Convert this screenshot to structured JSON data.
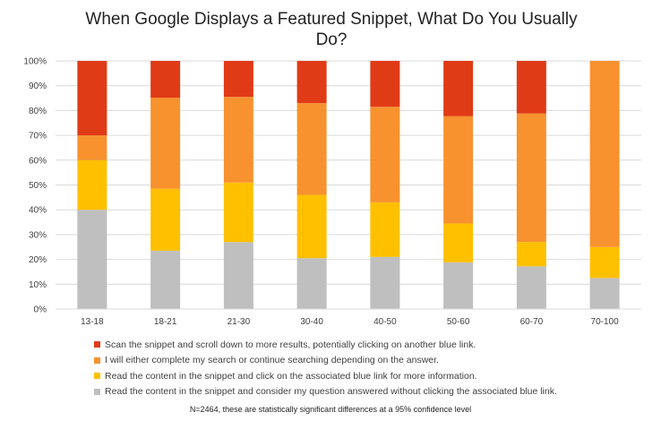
{
  "chart_data": {
    "type": "bar",
    "stacked": true,
    "title": "When Google Displays a Featured Snippet, What Do You Usually Do?",
    "categories": [
      "13-18",
      "18-21",
      "21-30",
      "30-40",
      "40-50",
      "50-60",
      "60-70",
      "70-100"
    ],
    "y_ticks": [
      "0%",
      "10%",
      "20%",
      "30%",
      "40%",
      "50%",
      "60%",
      "70%",
      "80%",
      "90%",
      "100%"
    ],
    "ylim": [
      0,
      100
    ],
    "grid": true,
    "legend_position": "bottom",
    "series": [
      {
        "name": "Read the content in the snippet and consider my question answered without clicking the associated blue link.",
        "color": "#bfbfbf",
        "values": [
          40,
          23.5,
          27,
          20.5,
          21,
          18.8,
          17.2,
          12.5
        ]
      },
      {
        "name": "Read the content in the snippet and click on the associated blue link for more information.",
        "color": "#ffc000",
        "values": [
          20,
          25,
          24,
          25.5,
          22,
          15.7,
          9.8,
          12.5
        ]
      },
      {
        "name": "I will either complete my search or continue searching depending on the answer.",
        "color": "#f7922f",
        "values": [
          10,
          36.7,
          34.5,
          37,
          38.5,
          43.2,
          51.8,
          75
        ]
      },
      {
        "name": "Scan the snippet and scroll down to more results, potentially clicking on another blue link.",
        "color": "#e03b17",
        "values": [
          30,
          14.8,
          14.5,
          17,
          18.5,
          22.3,
          21.2,
          0
        ]
      }
    ],
    "legend_order": [
      3,
      2,
      1,
      0
    ],
    "footnote": "N=2464, these are statistically significant differences at a 95% confidence level"
  }
}
